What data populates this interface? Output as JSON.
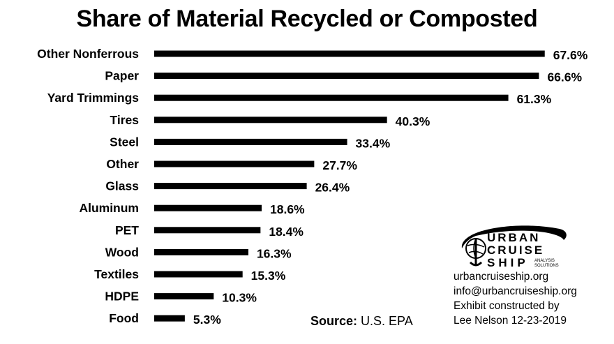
{
  "chart_data": {
    "type": "bar",
    "orientation": "horizontal",
    "title": "Share of Material Recycled or Composted",
    "categories": [
      "Other Nonferrous",
      "Paper",
      "Yard Trimmings",
      "Tires",
      "Steel",
      "Other",
      "Glass",
      "Aluminum",
      "PET",
      "Wood",
      "Textiles",
      "HDPE",
      "Food"
    ],
    "values": [
      67.6,
      66.6,
      61.3,
      40.3,
      33.4,
      27.7,
      26.4,
      18.6,
      18.4,
      16.3,
      15.3,
      10.3,
      5.3
    ],
    "value_labels": [
      "67.6%",
      "66.6%",
      "61.3%",
      "40.3%",
      "33.4%",
      "27.7%",
      "26.4%",
      "18.6%",
      "18.4%",
      "16.3%",
      "15.3%",
      "10.3%",
      "5.3%"
    ],
    "xlim": [
      0,
      100
    ],
    "grid": false,
    "bar_color": "#000000"
  },
  "source": {
    "label": "Source:",
    "value": "U.S. EPA"
  },
  "logo": {
    "line1": "URBAN",
    "line2": "CRUISE",
    "line3": "SHIP",
    "tag1": "ANALYSIS",
    "tag2": "SOLUTIONS"
  },
  "credits": {
    "site": "urbancruiseship.org",
    "email": "info@urbancruiseship.org",
    "constructed": "Exhibit constructed by",
    "author": "Lee Nelson 12-23-2019"
  }
}
